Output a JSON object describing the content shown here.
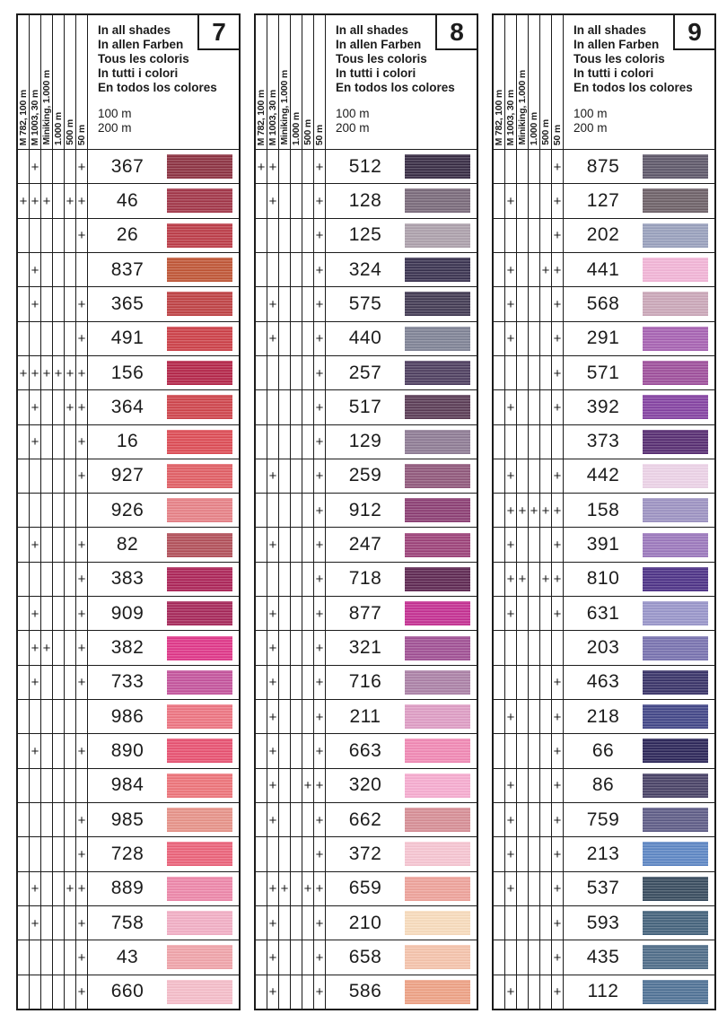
{
  "mark_glyph": "+",
  "ink_color": "#1c1c1c",
  "column_labels": [
    "M 782, 100 m",
    "M 1003, 30 m",
    "Miniking, 1.000 m",
    "1.000 m",
    "500 m",
    "50 m"
  ],
  "header": {
    "lines": [
      "In all shades",
      "In allen Farben",
      "Tous les coloris",
      "In tutti i colori",
      "En todos los colores"
    ],
    "lengths": [
      "100 m",
      "200 m"
    ]
  },
  "panels": [
    {
      "number": "7",
      "rows": [
        {
          "n": "367",
          "m": [
            0,
            1,
            0,
            0,
            0,
            1
          ],
          "c": "#8c2f3f"
        },
        {
          "n": "46",
          "m": [
            1,
            1,
            1,
            0,
            1,
            1
          ],
          "c": "#a23447"
        },
        {
          "n": "26",
          "m": [
            0,
            0,
            0,
            0,
            0,
            1
          ],
          "c": "#bc3a46"
        },
        {
          "n": "837",
          "m": [
            0,
            1,
            0,
            0,
            0,
            0
          ],
          "c": "#c05434"
        },
        {
          "n": "365",
          "m": [
            0,
            1,
            0,
            0,
            0,
            1
          ],
          "c": "#bf3f42"
        },
        {
          "n": "491",
          "m": [
            0,
            0,
            0,
            0,
            0,
            1
          ],
          "c": "#cd3e46"
        },
        {
          "n": "156",
          "m": [
            1,
            1,
            1,
            1,
            1,
            1
          ],
          "c": "#b42347"
        },
        {
          "n": "364",
          "m": [
            0,
            1,
            0,
            0,
            1,
            1
          ],
          "c": "#d0434a"
        },
        {
          "n": "16",
          "m": [
            0,
            1,
            0,
            0,
            0,
            1
          ],
          "c": "#de4a53"
        },
        {
          "n": "927",
          "m": [
            0,
            0,
            0,
            0,
            0,
            1
          ],
          "c": "#e25d63"
        },
        {
          "n": "926",
          "m": [
            0,
            0,
            0,
            0,
            0,
            0
          ],
          "c": "#e88086"
        },
        {
          "n": "82",
          "m": [
            0,
            1,
            0,
            0,
            0,
            1
          ],
          "c": "#b24e58"
        },
        {
          "n": "383",
          "m": [
            0,
            0,
            0,
            0,
            0,
            1
          ],
          "c": "#ac2156"
        },
        {
          "n": "909",
          "m": [
            0,
            1,
            0,
            0,
            0,
            1
          ],
          "c": "#a62558"
        },
        {
          "n": "382",
          "m": [
            0,
            1,
            1,
            0,
            0,
            1
          ],
          "c": "#e03488"
        },
        {
          "n": "733",
          "m": [
            0,
            1,
            0,
            0,
            0,
            1
          ],
          "c": "#c4529c"
        },
        {
          "n": "986",
          "m": [
            0,
            0,
            0,
            0,
            0,
            0
          ],
          "c": "#ee7380"
        },
        {
          "n": "890",
          "m": [
            0,
            1,
            0,
            0,
            0,
            1
          ],
          "c": "#e95070"
        },
        {
          "n": "984",
          "m": [
            0,
            0,
            0,
            0,
            0,
            0
          ],
          "c": "#ee7278"
        },
        {
          "n": "985",
          "m": [
            0,
            0,
            0,
            0,
            0,
            1
          ],
          "c": "#e89288"
        },
        {
          "n": "728",
          "m": [
            0,
            0,
            0,
            0,
            0,
            1
          ],
          "c": "#ec6078"
        },
        {
          "n": "889",
          "m": [
            0,
            1,
            0,
            0,
            1,
            1
          ],
          "c": "#ee86a9"
        },
        {
          "n": "758",
          "m": [
            0,
            1,
            0,
            0,
            0,
            1
          ],
          "c": "#f3aec5"
        },
        {
          "n": "43",
          "m": [
            0,
            0,
            0,
            0,
            0,
            1
          ],
          "c": "#f1a3a9"
        },
        {
          "n": "660",
          "m": [
            0,
            0,
            0,
            0,
            0,
            1
          ],
          "c": "#f6bdc9"
        }
      ]
    },
    {
      "number": "8",
      "rows": [
        {
          "n": "512",
          "m": [
            1,
            1,
            0,
            0,
            0,
            1
          ],
          "c": "#352942"
        },
        {
          "n": "128",
          "m": [
            0,
            1,
            0,
            0,
            0,
            1
          ],
          "c": "#786879"
        },
        {
          "n": "125",
          "m": [
            0,
            0,
            0,
            0,
            0,
            1
          ],
          "c": "#aca0ab"
        },
        {
          "n": "324",
          "m": [
            0,
            0,
            0,
            0,
            0,
            1
          ],
          "c": "#37304e"
        },
        {
          "n": "575",
          "m": [
            0,
            1,
            0,
            0,
            0,
            1
          ],
          "c": "#403751"
        },
        {
          "n": "440",
          "m": [
            0,
            1,
            0,
            0,
            0,
            1
          ],
          "c": "#7e8295"
        },
        {
          "n": "257",
          "m": [
            0,
            0,
            0,
            0,
            0,
            1
          ],
          "c": "#4c3c5e"
        },
        {
          "n": "517",
          "m": [
            0,
            0,
            0,
            0,
            0,
            1
          ],
          "c": "#593a54"
        },
        {
          "n": "129",
          "m": [
            0,
            0,
            0,
            0,
            0,
            1
          ],
          "c": "#8d7a94"
        },
        {
          "n": "259",
          "m": [
            0,
            1,
            0,
            0,
            0,
            1
          ],
          "c": "#90567a"
        },
        {
          "n": "912",
          "m": [
            0,
            0,
            0,
            0,
            0,
            1
          ],
          "c": "#8b3c72"
        },
        {
          "n": "247",
          "m": [
            0,
            1,
            0,
            0,
            0,
            1
          ],
          "c": "#9c4078"
        },
        {
          "n": "718",
          "m": [
            0,
            0,
            0,
            0,
            0,
            1
          ],
          "c": "#5c2450"
        },
        {
          "n": "877",
          "m": [
            0,
            1,
            0,
            0,
            0,
            1
          ],
          "c": "#c42d92"
        },
        {
          "n": "321",
          "m": [
            0,
            1,
            0,
            0,
            0,
            1
          ],
          "c": "#a04e94"
        },
        {
          "n": "716",
          "m": [
            0,
            1,
            0,
            0,
            0,
            1
          ],
          "c": "#ab80a6"
        },
        {
          "n": "211",
          "m": [
            0,
            1,
            0,
            0,
            0,
            1
          ],
          "c": "#df9cc4"
        },
        {
          "n": "663",
          "m": [
            0,
            1,
            0,
            0,
            0,
            1
          ],
          "c": "#f288b4"
        },
        {
          "n": "320",
          "m": [
            0,
            1,
            0,
            0,
            1,
            1
          ],
          "c": "#f7abd0"
        },
        {
          "n": "662",
          "m": [
            0,
            1,
            0,
            0,
            0,
            1
          ],
          "c": "#d78d95"
        },
        {
          "n": "372",
          "m": [
            0,
            0,
            0,
            0,
            0,
            1
          ],
          "c": "#f7c5d2"
        },
        {
          "n": "659",
          "m": [
            0,
            1,
            1,
            0,
            1,
            1
          ],
          "c": "#efa29a"
        },
        {
          "n": "210",
          "m": [
            0,
            1,
            0,
            0,
            0,
            1
          ],
          "c": "#f9dcbc"
        },
        {
          "n": "658",
          "m": [
            0,
            1,
            0,
            0,
            0,
            1
          ],
          "c": "#f6c3ab"
        },
        {
          "n": "586",
          "m": [
            0,
            1,
            0,
            0,
            0,
            1
          ],
          "c": "#efa184"
        }
      ]
    },
    {
      "number": "9",
      "rows": [
        {
          "n": "875",
          "m": [
            0,
            0,
            0,
            0,
            0,
            1
          ],
          "c": "#5c5668"
        },
        {
          "n": "127",
          "m": [
            0,
            1,
            0,
            0,
            0,
            1
          ],
          "c": "#6c5f66"
        },
        {
          "n": "202",
          "m": [
            0,
            0,
            0,
            0,
            0,
            1
          ],
          "c": "#98a0bd"
        },
        {
          "n": "441",
          "m": [
            0,
            1,
            0,
            0,
            1,
            1
          ],
          "c": "#f3b4d7"
        },
        {
          "n": "568",
          "m": [
            0,
            1,
            0,
            0,
            0,
            1
          ],
          "c": "#cba6b8"
        },
        {
          "n": "291",
          "m": [
            0,
            1,
            0,
            0,
            0,
            1
          ],
          "c": "#a660b2"
        },
        {
          "n": "571",
          "m": [
            0,
            0,
            0,
            0,
            0,
            1
          ],
          "c": "#9e4d9b"
        },
        {
          "n": "392",
          "m": [
            0,
            1,
            0,
            0,
            0,
            1
          ],
          "c": "#8440a2"
        },
        {
          "n": "373",
          "m": [
            0,
            0,
            0,
            0,
            0,
            0
          ],
          "c": "#552a70"
        },
        {
          "n": "442",
          "m": [
            0,
            1,
            0,
            0,
            0,
            1
          ],
          "c": "#edd3e8"
        },
        {
          "n": "158",
          "m": [
            0,
            1,
            1,
            1,
            1,
            1
          ],
          "c": "#9c92c2"
        },
        {
          "n": "391",
          "m": [
            0,
            1,
            0,
            0,
            0,
            1
          ],
          "c": "#9b77bd"
        },
        {
          "n": "810",
          "m": [
            0,
            1,
            1,
            0,
            1,
            1
          ],
          "c": "#4b2f86"
        },
        {
          "n": "631",
          "m": [
            0,
            1,
            0,
            0,
            0,
            1
          ],
          "c": "#9895ca"
        },
        {
          "n": "203",
          "m": [
            0,
            0,
            0,
            0,
            0,
            0
          ],
          "c": "#7771af"
        },
        {
          "n": "463",
          "m": [
            0,
            0,
            0,
            0,
            0,
            1
          ],
          "c": "#363066"
        },
        {
          "n": "218",
          "m": [
            0,
            1,
            0,
            0,
            0,
            1
          ],
          "c": "#404487"
        },
        {
          "n": "66",
          "m": [
            0,
            0,
            0,
            0,
            0,
            1
          ],
          "c": "#292357"
        },
        {
          "n": "86",
          "m": [
            0,
            1,
            0,
            0,
            0,
            1
          ],
          "c": "#463f64"
        },
        {
          "n": "759",
          "m": [
            0,
            1,
            0,
            0,
            0,
            1
          ],
          "c": "#5c5a86"
        },
        {
          "n": "213",
          "m": [
            0,
            1,
            0,
            0,
            0,
            1
          ],
          "c": "#5b85c4"
        },
        {
          "n": "537",
          "m": [
            0,
            1,
            0,
            0,
            0,
            1
          ],
          "c": "#35495c"
        },
        {
          "n": "593",
          "m": [
            0,
            0,
            0,
            0,
            0,
            1
          ],
          "c": "#41607a"
        },
        {
          "n": "435",
          "m": [
            0,
            0,
            0,
            0,
            0,
            1
          ],
          "c": "#4c6a87"
        },
        {
          "n": "112",
          "m": [
            0,
            1,
            0,
            0,
            0,
            1
          ],
          "c": "#4d7095"
        }
      ]
    }
  ]
}
